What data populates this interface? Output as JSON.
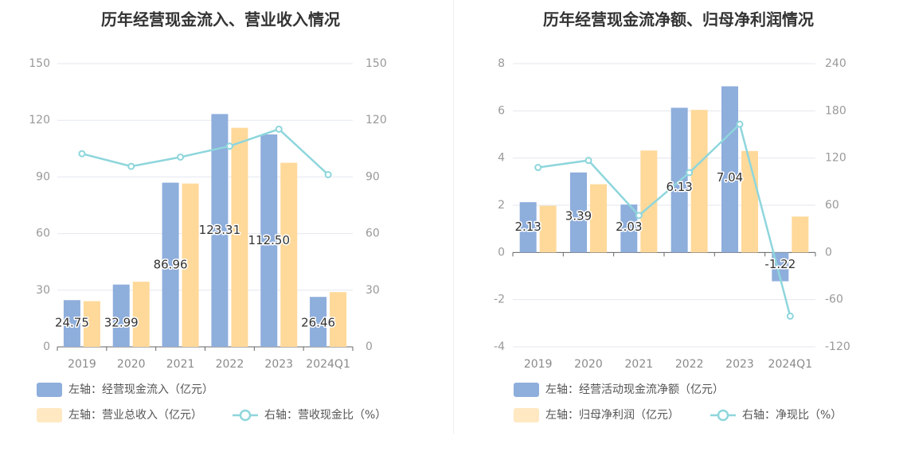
{
  "chart_data": [
    {
      "type": "bar",
      "title": "历年经营现金流入、营业收入情况",
      "categories": [
        "2019",
        "2020",
        "2021",
        "2022",
        "2023",
        "2024Q1"
      ],
      "y_left": {
        "range": [
          0,
          150
        ],
        "ticks": [
          "0",
          "30",
          "60",
          "90",
          "120",
          "150"
        ]
      },
      "y_right": {
        "range": [
          0,
          150
        ],
        "ticks": [
          "0",
          "30",
          "60",
          "90",
          "120",
          "150"
        ]
      },
      "grid": true,
      "legend_position": "bottom",
      "series": [
        {
          "name": "左轴：经营现金流入（亿元）",
          "type": "bar",
          "axis": "left",
          "color": "#8eaedc",
          "values": [
            24.75,
            32.99,
            86.96,
            123.31,
            112.5,
            26.46
          ],
          "labels": [
            "24.75",
            "32.99",
            "86.96",
            "123.31",
            "112.50",
            "26.46"
          ]
        },
        {
          "name": "左轴：营业总收入（亿元）",
          "type": "bar",
          "axis": "left",
          "color": "#ffd99a",
          "values": [
            24.2,
            34.5,
            86.5,
            116.0,
            97.5,
            29.0
          ]
        },
        {
          "name": "右轴：营收现金比（%）",
          "type": "line",
          "axis": "right",
          "color": "#8ed6dc",
          "values": [
            102.3,
            95.6,
            100.5,
            106.3,
            115.3,
            91.2
          ]
        }
      ]
    },
    {
      "type": "bar",
      "title": "历年经营现金流净额、归母净利润情况",
      "categories": [
        "2019",
        "2020",
        "2021",
        "2022",
        "2023",
        "2024Q1"
      ],
      "y_left": {
        "range": [
          -4,
          8
        ],
        "ticks": [
          "-4",
          "-2",
          "0",
          "2",
          "4",
          "6",
          "8"
        ]
      },
      "y_right": {
        "range": [
          -120,
          240
        ],
        "ticks": [
          "-120",
          "-60",
          "0",
          "60",
          "120",
          "180",
          "240"
        ]
      },
      "grid": true,
      "legend_position": "bottom",
      "series": [
        {
          "name": "左轴：经营活动现金流净额（亿元）",
          "type": "bar",
          "axis": "left",
          "color": "#8eaedc",
          "values": [
            2.13,
            3.39,
            2.03,
            6.13,
            7.04,
            -1.22
          ],
          "labels": [
            "2.13",
            "3.39",
            "2.03",
            "6.13",
            "7.04",
            "-1.22"
          ]
        },
        {
          "name": "左轴：归母净利润（亿元）",
          "type": "bar",
          "axis": "left",
          "color": "#ffd99a",
          "values": [
            1.98,
            2.89,
            4.32,
            6.04,
            4.3,
            1.52
          ]
        },
        {
          "name": "右轴：净现比（%）",
          "type": "line",
          "axis": "right",
          "color": "#8ed6dc",
          "values": [
            108.0,
            117.0,
            47.0,
            101.5,
            163.0,
            -81.0
          ]
        }
      ]
    }
  ]
}
